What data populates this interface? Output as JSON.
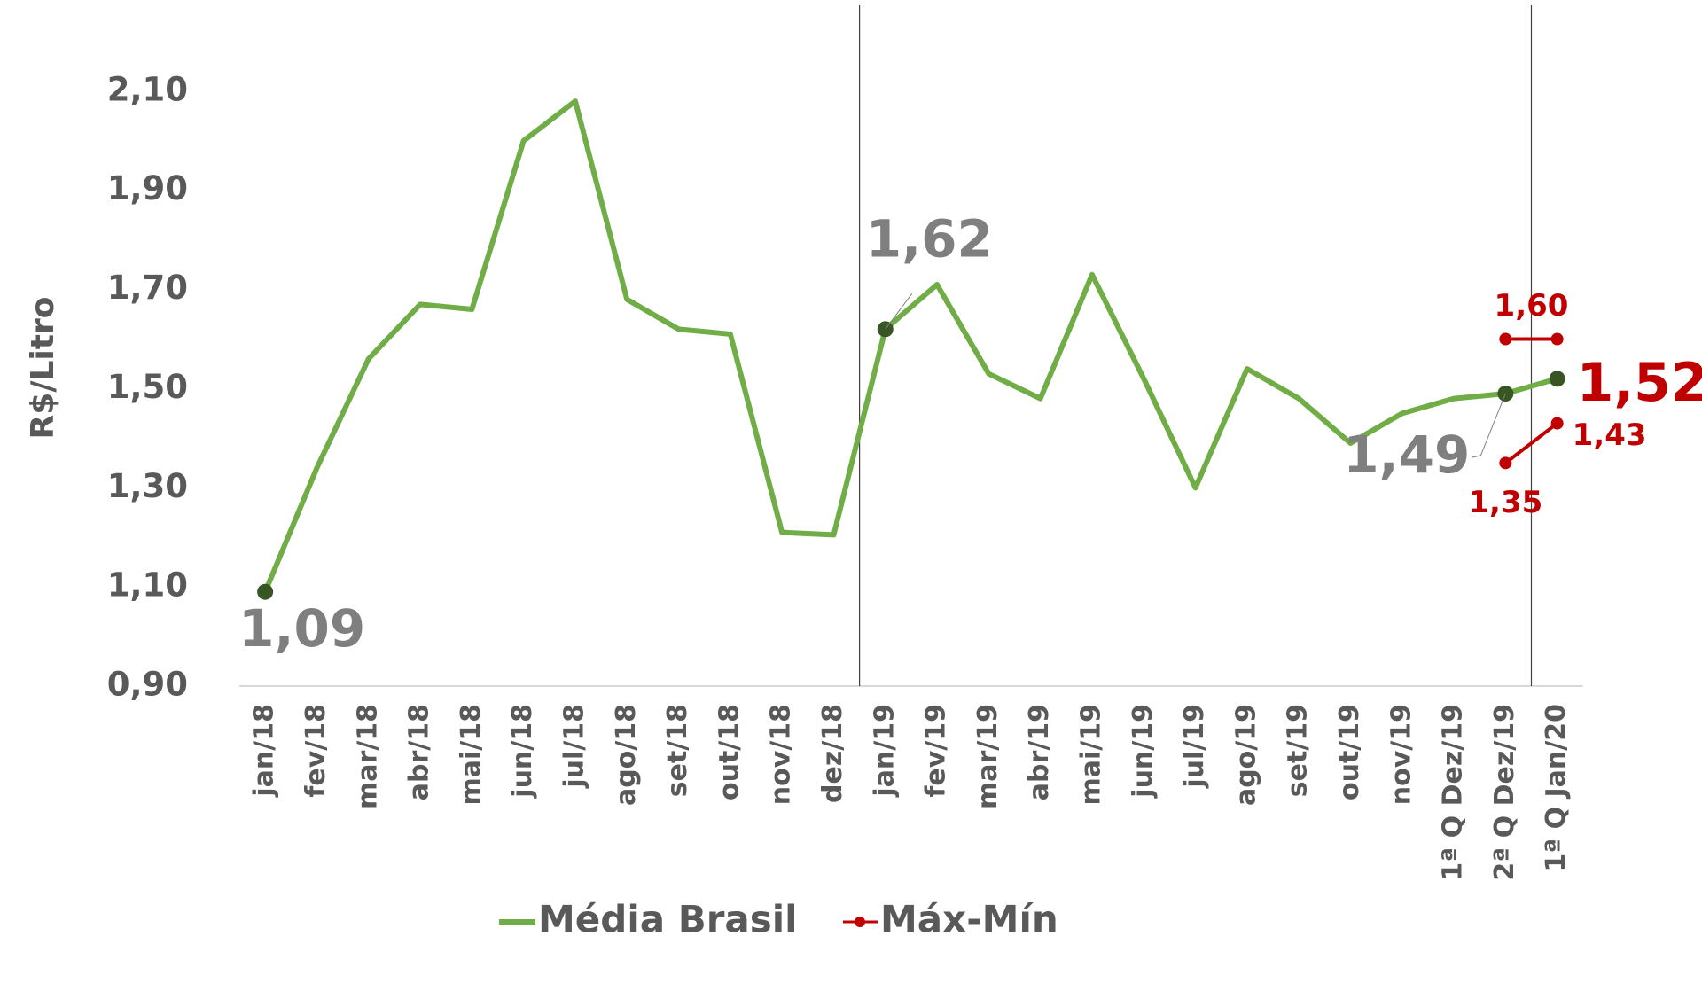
{
  "chart_data": {
    "type": "line",
    "y_axis_label": "R$/Litro",
    "categories": [
      "jan/18",
      "fev/18",
      "mar/18",
      "abr/18",
      "mai/18",
      "jun/18",
      "jul/18",
      "ago/18",
      "set/18",
      "out/18",
      "nov/18",
      "dez/18",
      "jan/19",
      "fev/19",
      "mar/19",
      "abr/19",
      "mai/19",
      "jun/19",
      "jul/19",
      "ago/19",
      "set/19",
      "out/19",
      "nov/19",
      "1ª Q Dez/19",
      "2ª Q Dez/19",
      "1ª Q Jan/20"
    ],
    "series": [
      {
        "name": "Média Brasil",
        "color": "#70ad47",
        "marker_color": "#375623",
        "values": [
          1.09,
          1.34,
          1.56,
          1.67,
          1.66,
          2.0,
          2.08,
          1.68,
          1.62,
          1.61,
          1.21,
          1.205,
          1.62,
          1.71,
          1.53,
          1.48,
          1.73,
          1.52,
          1.3,
          1.54,
          1.48,
          1.39,
          1.45,
          1.48,
          1.49,
          1.52
        ],
        "value_labels": [
          "1,09",
          null,
          null,
          null,
          null,
          null,
          null,
          null,
          null,
          null,
          null,
          null,
          "1,62",
          null,
          null,
          null,
          null,
          null,
          null,
          null,
          null,
          null,
          null,
          null,
          "1,49",
          "1,52"
        ]
      },
      {
        "name": "Máx-Mín",
        "color": "#c00000",
        "max": [
          null,
          null,
          null,
          null,
          null,
          null,
          null,
          null,
          null,
          null,
          null,
          null,
          null,
          null,
          null,
          null,
          null,
          null,
          null,
          null,
          null,
          null,
          null,
          null,
          1.6,
          1.6
        ],
        "max_labels": [
          null,
          null,
          null,
          null,
          null,
          null,
          null,
          null,
          null,
          null,
          null,
          null,
          null,
          null,
          null,
          null,
          null,
          null,
          null,
          null,
          null,
          null,
          null,
          null,
          "1,60",
          null
        ],
        "min": [
          null,
          null,
          null,
          null,
          null,
          null,
          null,
          null,
          null,
          null,
          null,
          null,
          null,
          null,
          null,
          null,
          null,
          null,
          null,
          null,
          null,
          null,
          null,
          null,
          1.35,
          1.43
        ],
        "min_labels": [
          null,
          null,
          null,
          null,
          null,
          null,
          null,
          null,
          null,
          null,
          null,
          null,
          null,
          null,
          null,
          null,
          null,
          null,
          null,
          null,
          null,
          null,
          null,
          null,
          "1,35",
          "1,43"
        ]
      }
    ],
    "ylim": [
      0.9,
      2.25
    ],
    "yticks": [
      {
        "value": 0.9,
        "label": "0,90"
      },
      {
        "value": 1.1,
        "label": "1,10"
      },
      {
        "value": 1.3,
        "label": "1,30"
      },
      {
        "value": 1.5,
        "label": "1,50"
      },
      {
        "value": 1.7,
        "label": "1,70"
      },
      {
        "value": 1.9,
        "label": "1,90"
      },
      {
        "value": 2.1,
        "label": "2,10"
      }
    ],
    "grid": false
  }
}
